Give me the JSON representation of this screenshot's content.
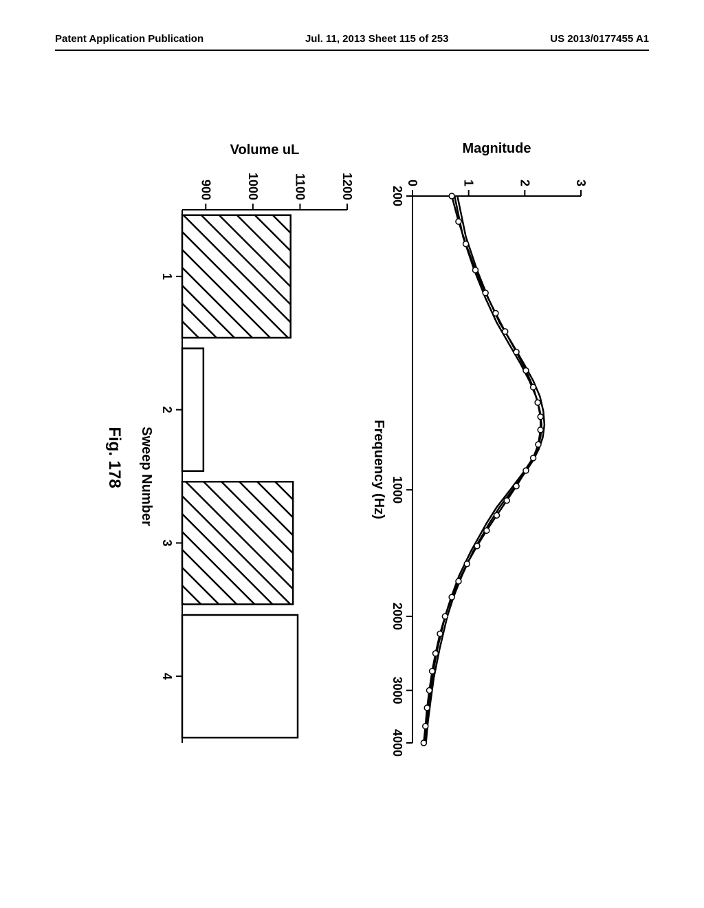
{
  "header": {
    "left": "Patent Application Publication",
    "center": "Jul. 11, 2013  Sheet 115 of 253",
    "right": "US 2013/0177455 A1"
  },
  "figure_caption": "Fig. 178",
  "top_chart": {
    "type": "line",
    "xlabel": "Frequency (Hz)",
    "ylabel": "Magnitude",
    "xscale": "log",
    "xlim": [
      200,
      4000
    ],
    "ylim": [
      0,
      3
    ],
    "yticks": [
      0,
      1,
      2,
      3
    ],
    "xticks": [
      200,
      1000,
      2000,
      3000,
      4000
    ],
    "curve_color": "#000000",
    "marker_color": "#000000",
    "background_color": "#ffffff",
    "line_width": 2.5,
    "marker_size": 4,
    "tick_fontsize": 18,
    "label_fontsize": 20,
    "curves": [
      {
        "name": "curve1",
        "markers": false,
        "x": [
          200,
          250,
          300,
          350,
          400,
          450,
          500,
          550,
          600,
          650,
          700,
          750,
          800,
          850,
          900,
          1000,
          1100,
          1200,
          1400,
          1600,
          1800,
          2000,
          2400,
          2800,
          3200,
          3600,
          4000
        ],
        "y": [
          0.8,
          0.95,
          1.15,
          1.35,
          1.55,
          1.78,
          1.98,
          2.15,
          2.27,
          2.33,
          2.35,
          2.32,
          2.25,
          2.15,
          2.03,
          1.78,
          1.55,
          1.37,
          1.08,
          0.88,
          0.73,
          0.62,
          0.48,
          0.38,
          0.32,
          0.27,
          0.24
        ]
      },
      {
        "name": "curve2",
        "markers": false,
        "x": [
          200,
          250,
          300,
          350,
          400,
          450,
          500,
          550,
          600,
          650,
          700,
          750,
          800,
          850,
          900,
          1000,
          1100,
          1200,
          1400,
          1600,
          1800,
          2000,
          2400,
          2800,
          3200,
          3600,
          4000
        ],
        "y": [
          0.75,
          0.9,
          1.1,
          1.3,
          1.5,
          1.72,
          1.92,
          2.08,
          2.2,
          2.27,
          2.3,
          2.28,
          2.22,
          2.12,
          2.0,
          1.74,
          1.5,
          1.32,
          1.04,
          0.83,
          0.69,
          0.58,
          0.44,
          0.35,
          0.29,
          0.25,
          0.22
        ]
      },
      {
        "name": "curve3",
        "markers": true,
        "x": [
          200,
          230,
          260,
          300,
          340,
          380,
          420,
          470,
          520,
          570,
          620,
          670,
          720,
          780,
          840,
          900,
          980,
          1060,
          1150,
          1250,
          1360,
          1500,
          1650,
          1800,
          2000,
          2200,
          2450,
          2700,
          3000,
          3300,
          3650,
          4000
        ],
        "y": [
          0.7,
          0.82,
          0.95,
          1.12,
          1.3,
          1.48,
          1.65,
          1.85,
          2.02,
          2.15,
          2.23,
          2.28,
          2.28,
          2.24,
          2.15,
          2.02,
          1.85,
          1.68,
          1.5,
          1.32,
          1.15,
          0.97,
          0.82,
          0.7,
          0.58,
          0.49,
          0.41,
          0.35,
          0.3,
          0.26,
          0.23,
          0.2
        ]
      }
    ]
  },
  "bottom_chart": {
    "type": "bar",
    "xlabel": "Sweep Number",
    "ylabel": "Volume uL",
    "ylim": [
      850,
      1200
    ],
    "yticks": [
      900,
      1000,
      1100,
      1200
    ],
    "xticks": [
      1,
      2,
      3,
      4
    ],
    "categories": [
      1,
      2,
      3,
      4
    ],
    "values": [
      1080,
      895,
      1085,
      1095
    ],
    "hatched": [
      true,
      false,
      true,
      false
    ],
    "bar_width": 0.92,
    "bar_outline_color": "#000000",
    "background_color": "#ffffff",
    "tick_fontsize": 18,
    "label_fontsize": 20,
    "line_width": 2.5
  }
}
